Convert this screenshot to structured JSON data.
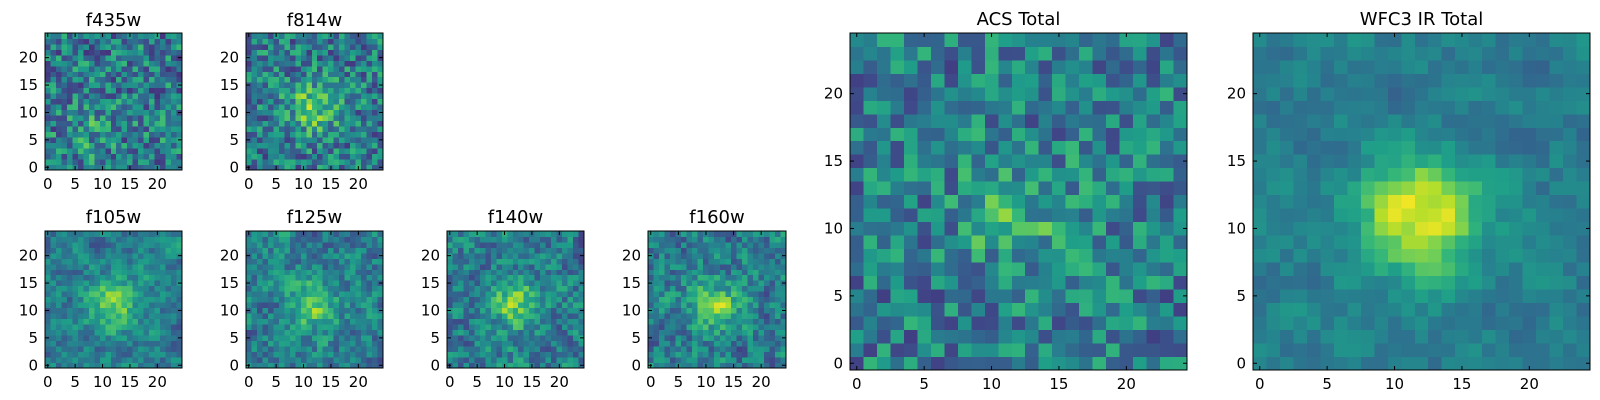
{
  "chart_data": [
    {
      "type": "heatmap",
      "title": "f435w",
      "grid_size": 25,
      "xlim": [
        -0.5,
        24.5
      ],
      "ylim": [
        -0.5,
        24.5
      ],
      "xticks": [
        0,
        5,
        10,
        15,
        20
      ],
      "yticks": [
        0,
        5,
        10,
        15,
        20
      ],
      "colormap": "viridis",
      "source_peak": {
        "x": 8,
        "y": 7
      },
      "source_strength": 0.12,
      "noise_level": 0.34,
      "smoothness": 0.0,
      "seed": 11
    },
    {
      "type": "heatmap",
      "title": "f814w",
      "grid_size": 25,
      "xlim": [
        -0.5,
        24.5
      ],
      "ylim": [
        -0.5,
        24.5
      ],
      "xticks": [
        0,
        5,
        10,
        15,
        20
      ],
      "yticks": [
        0,
        5,
        10,
        15,
        20
      ],
      "colormap": "viridis",
      "source_peak": {
        "x": 12,
        "y": 11
      },
      "source_strength": 0.34,
      "noise_level": 0.32,
      "smoothness": 0.0,
      "seed": 23
    },
    {
      "type": "heatmap",
      "title": "f105w",
      "grid_size": 25,
      "xlim": [
        -0.5,
        24.5
      ],
      "ylim": [
        -0.5,
        24.5
      ],
      "xticks": [
        0,
        5,
        10,
        15,
        20
      ],
      "yticks": [
        0,
        5,
        10,
        15,
        20
      ],
      "colormap": "viridis",
      "source_peak": {
        "x": 12,
        "y": 11
      },
      "source_strength": 0.38,
      "noise_level": 0.32,
      "smoothness": 0.5,
      "seed": 37
    },
    {
      "type": "heatmap",
      "title": "f125w",
      "grid_size": 25,
      "xlim": [
        -0.5,
        24.5
      ],
      "ylim": [
        -0.5,
        24.5
      ],
      "xticks": [
        0,
        5,
        10,
        15,
        20
      ],
      "yticks": [
        0,
        5,
        10,
        15,
        20
      ],
      "colormap": "viridis",
      "source_peak": {
        "x": 12,
        "y": 11
      },
      "source_strength": 0.34,
      "noise_level": 0.34,
      "smoothness": 0.4,
      "seed": 41
    },
    {
      "type": "heatmap",
      "title": "f140w",
      "grid_size": 25,
      "xlim": [
        -0.5,
        24.5
      ],
      "ylim": [
        -0.5,
        24.5
      ],
      "xticks": [
        0,
        5,
        10,
        15,
        20
      ],
      "yticks": [
        0,
        5,
        10,
        15,
        20
      ],
      "colormap": "viridis",
      "source_peak": {
        "x": 12,
        "y": 11
      },
      "source_strength": 0.34,
      "noise_level": 0.36,
      "smoothness": 0.4,
      "seed": 53
    },
    {
      "type": "heatmap",
      "title": "f160w",
      "grid_size": 25,
      "xlim": [
        -0.5,
        24.5
      ],
      "ylim": [
        -0.5,
        24.5
      ],
      "xticks": [
        0,
        5,
        10,
        15,
        20
      ],
      "yticks": [
        0,
        5,
        10,
        15,
        20
      ],
      "colormap": "viridis",
      "source_peak": {
        "x": 12,
        "y": 11
      },
      "source_strength": 0.34,
      "noise_level": 0.36,
      "smoothness": 0.4,
      "seed": 67
    },
    {
      "type": "heatmap",
      "title": "ACS Total",
      "grid_size": 25,
      "xlim": [
        -0.5,
        24.5
      ],
      "ylim": [
        -0.5,
        24.5
      ],
      "xticks": [
        0,
        5,
        10,
        15,
        20
      ],
      "yticks": [
        0,
        5,
        10,
        15,
        20
      ],
      "colormap": "viridis",
      "source_peak": {
        "x": 12,
        "y": 11
      },
      "source_strength": 0.2,
      "noise_level": 0.3,
      "smoothness": 0.0,
      "seed": 79
    },
    {
      "type": "heatmap",
      "title": "WFC3 IR Total",
      "grid_size": 25,
      "xlim": [
        -0.5,
        24.5
      ],
      "ylim": [
        -0.5,
        24.5
      ],
      "xticks": [
        0,
        5,
        10,
        15,
        20
      ],
      "yticks": [
        0,
        5,
        10,
        15,
        20
      ],
      "colormap": "viridis",
      "source_peak": {
        "x": 12,
        "y": 11
      },
      "source_strength": 0.55,
      "noise_level": 0.22,
      "smoothness": 0.6,
      "seed": 97
    }
  ]
}
